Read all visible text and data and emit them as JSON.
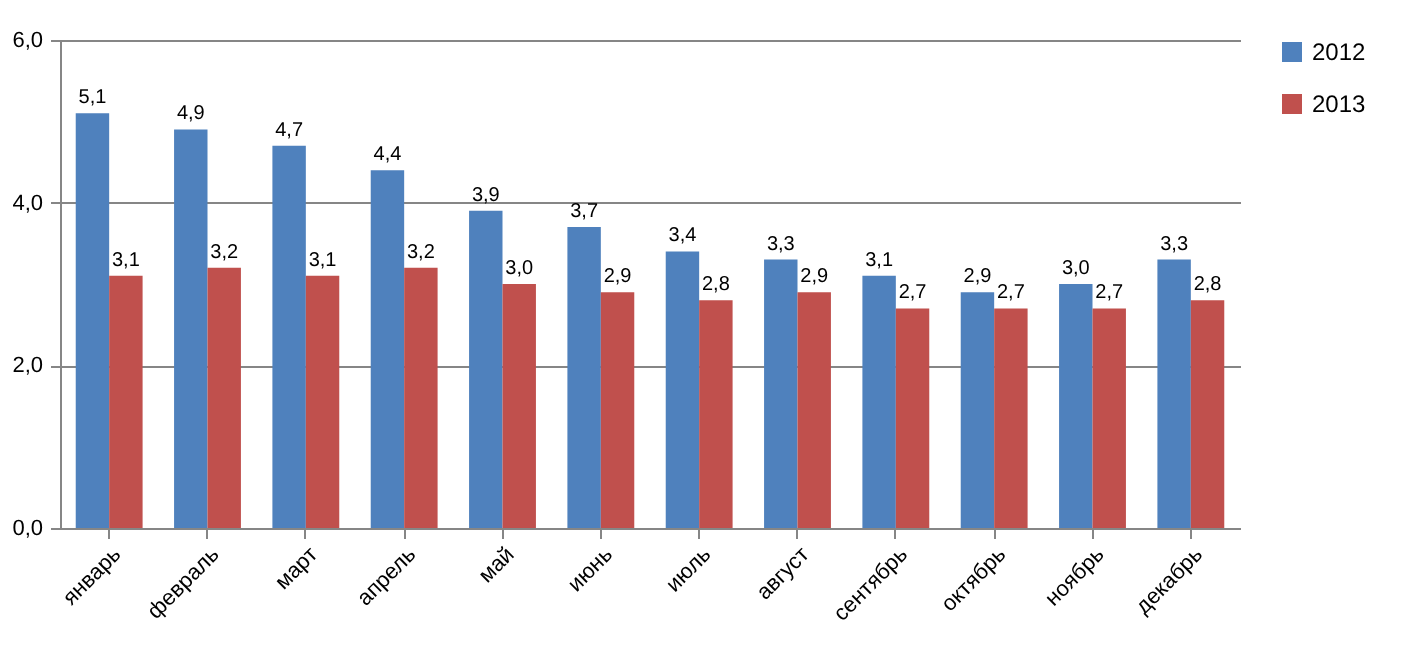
{
  "chart_data": {
    "type": "bar",
    "categories": [
      "январь",
      "февраль",
      "март",
      "апрель",
      "май",
      "июнь",
      "июль",
      "август",
      "сентябрь",
      "октябрь",
      "ноябрь",
      "декабрь"
    ],
    "series": [
      {
        "name": "2012",
        "color": "#4f81bd",
        "values": [
          5.1,
          4.9,
          4.7,
          4.4,
          3.9,
          3.7,
          3.4,
          3.3,
          3.1,
          2.9,
          3.0,
          3.3
        ],
        "value_labels": [
          "5,1",
          "4,9",
          "4,7",
          "4,4",
          "3,9",
          "3,7",
          "3,4",
          "3,3",
          "3,1",
          "2,9",
          "3,0",
          "3,3"
        ]
      },
      {
        "name": "2013",
        "color": "#c0504d",
        "values": [
          3.1,
          3.2,
          3.1,
          3.2,
          3.0,
          2.9,
          2.8,
          2.9,
          2.7,
          2.7,
          2.7,
          2.8
        ],
        "value_labels": [
          "3,1",
          "3,2",
          "3,1",
          "3,2",
          "3,0",
          "2,9",
          "2,8",
          "2,9",
          "2,7",
          "2,7",
          "2,7",
          "2,8"
        ]
      }
    ],
    "ylim": [
      0,
      6
    ],
    "yticks": [
      {
        "value": 0,
        "label": "0,0"
      },
      {
        "value": 2,
        "label": "2,0"
      },
      {
        "value": 4,
        "label": "4,0"
      },
      {
        "value": 6,
        "label": "6,0"
      }
    ],
    "grid": "y",
    "legend": "right"
  }
}
